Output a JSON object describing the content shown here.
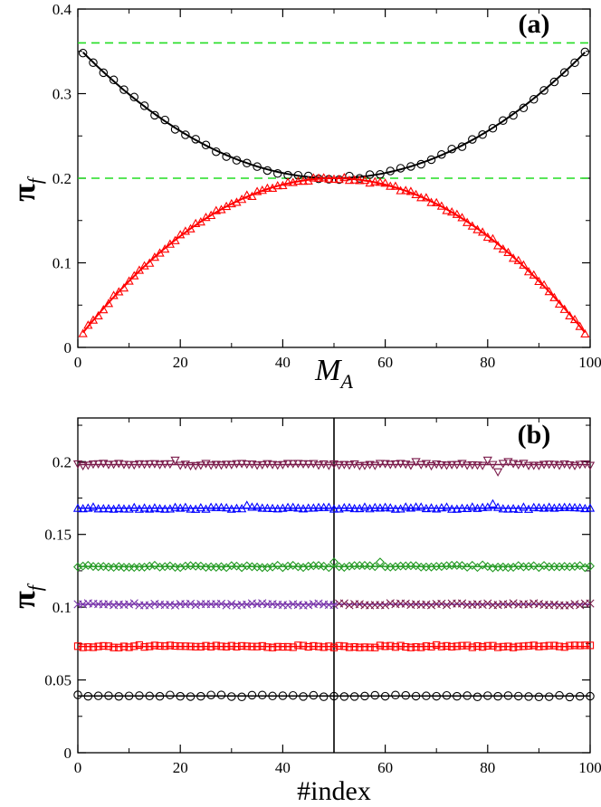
{
  "chart_data": [
    {
      "id": "a",
      "type": "scatter",
      "panel_label": "(a)",
      "xlabel": "M",
      "xlabel_sub": "A",
      "ylabel": "π",
      "ylabel_sub": "f",
      "xlim": [
        0,
        100
      ],
      "ylim": [
        0,
        0.4
      ],
      "xticks": [
        "0",
        "20",
        "40",
        "60",
        "80",
        "100"
      ],
      "yticks": [
        "0",
        "0.1",
        "0.2",
        "0.3",
        "0.4"
      ],
      "reference_lines": [
        {
          "name": "upper-reference",
          "y": 0.36,
          "color": "#22dd22"
        },
        {
          "name": "middle-reference",
          "y": 0.2,
          "color": "#22dd22"
        }
      ],
      "series": [
        {
          "name": "upper-branch",
          "marker": "circle",
          "color": "#000000",
          "curve": {
            "form": "quadratic",
            "center": 50,
            "min": 0.2,
            "max": 0.355,
            "half_range": 50
          },
          "x_start": 1,
          "x_end": 99,
          "x_step": 2
        },
        {
          "name": "lower-branch",
          "marker": "triangle",
          "color": "#ff0000",
          "curve": {
            "form": "quadratic-inverted",
            "center": 50,
            "max": 0.2,
            "min": 0.01,
            "half_range": 50
          },
          "x_start": 1,
          "x_end": 99,
          "x_step": 1
        }
      ]
    },
    {
      "id": "b",
      "type": "scatter",
      "panel_label": "(b)",
      "xlabel": "#index",
      "ylabel": "π",
      "ylabel_sub": "f",
      "xlim": [
        0,
        100
      ],
      "ylim": [
        0,
        0.23
      ],
      "xticks": [
        "0",
        "20",
        "40",
        "60",
        "80",
        "100"
      ],
      "yticks": [
        "0",
        "0.05",
        "0.1",
        "0.15",
        "0.2"
      ],
      "divider_x": 50,
      "series": [
        {
          "name": "series-0.198",
          "marker": "triangle-down",
          "color": "#7a1a4a",
          "level": 0.198,
          "x_step": 1,
          "outliers": [
            [
              19,
              0.201
            ],
            [
              66,
              0.2
            ],
            [
              80,
              0.201
            ],
            [
              82,
              0.193
            ],
            [
              84,
              0.2
            ]
          ]
        },
        {
          "name": "series-0.168",
          "marker": "triangle",
          "color": "#0000ff",
          "level": 0.168,
          "x_step": 1,
          "outliers": [
            [
              33,
              0.17
            ],
            [
              81,
              0.171
            ]
          ]
        },
        {
          "name": "series-0.128",
          "marker": "diamond",
          "color": "#229922",
          "level": 0.128,
          "x_step": 1,
          "outliers": [
            [
              50,
              0.131
            ],
            [
              59,
              0.131
            ],
            [
              79,
              0.129
            ],
            [
              81,
              0.127
            ]
          ]
        },
        {
          "name": "series-0.102",
          "marker": "cross",
          "color": "#7733aa",
          "color_right": "#7a1a4a",
          "level": 0.102,
          "x_step": 1,
          "outliers": []
        },
        {
          "name": "series-0.073",
          "marker": "square",
          "color": "#ff0000",
          "level": 0.073,
          "x_step": 1,
          "outliers": [
            [
              12,
              0.074
            ],
            [
              70,
              0.074
            ]
          ]
        },
        {
          "name": "series-0.039",
          "marker": "circle",
          "color": "#000000",
          "level": 0.039,
          "x_step": 2,
          "outliers": [
            [
              51,
              0.04
            ]
          ]
        }
      ]
    }
  ]
}
